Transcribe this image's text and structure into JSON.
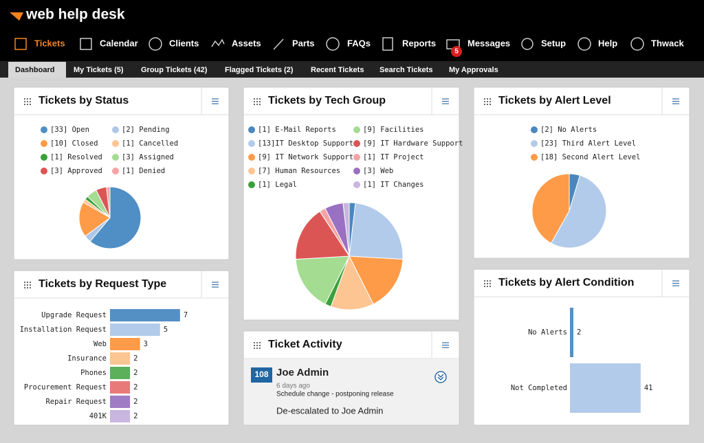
{
  "header": {
    "logo": "web help desk",
    "messages_badge": 5
  },
  "nav": [
    "Tickets",
    "Calendar",
    "Clients",
    "Assets",
    "Parts",
    "FAQs",
    "Reports",
    "Messages",
    "Setup",
    "Help",
    "Thwack"
  ],
  "tabs": [
    "Dashboard",
    "My Tickets (5)",
    "Group Tickets (42)",
    "Flagged Tickets (2)",
    "Recent Tickets",
    "Search Tickets",
    "My Approvals"
  ],
  "chart_data": [
    {
      "type": "pie",
      "title": "Tickets by Status",
      "labels": [
        "[33] Open",
        "[2] Pending",
        "[10] Closed",
        "[1] Cancelled",
        "[1] Resolved",
        "[3] Assigned",
        "[3] Approved",
        "[1] Denied"
      ],
      "values": [
        33,
        2,
        10,
        1,
        1,
        3,
        3,
        1
      ],
      "colors": [
        "#4f8fc6",
        "#aec7e8",
        "#fd9b48",
        "#fdc592",
        "#3aa03a",
        "#a4dc91",
        "#dc5555",
        "#f5a3a3"
      ]
    },
    {
      "type": "pie",
      "title": "Tickets by Tech Group",
      "labels": [
        "[1] E-Mail Reports",
        "[13]IT Desktop Support",
        "[9] IT Network Support",
        "[7] Human Resources",
        "[1] Legal",
        "[9] Facilities",
        "[9] IT Hardware Support",
        "[1] IT Project",
        "[3] Web",
        "[1] IT Changes"
      ],
      "values": [
        1,
        13,
        9,
        7,
        1,
        9,
        9,
        1,
        3,
        1
      ],
      "colors": [
        "#4a87bf",
        "#b3cbea",
        "#fd9b48",
        "#fdc592",
        "#3aa03a",
        "#a4dc91",
        "#dc5555",
        "#f5a3a3",
        "#9a70c2",
        "#c9b6de"
      ]
    },
    {
      "type": "pie",
      "title": "Tickets by Alert Level",
      "labels": [
        "[2] No Alerts",
        "[23] Third Alert Level",
        "[18] Second Alert Level"
      ],
      "values": [
        2,
        23,
        18
      ],
      "colors": [
        "#4a87bf",
        "#b3cbea",
        "#fd9b48"
      ]
    },
    {
      "type": "bar",
      "horizontal": true,
      "title": "Tickets by Request Type",
      "categories": [
        "Upgrade Request",
        "Installation Request",
        "Web",
        "Insurance",
        "Phones",
        "Procurement Request",
        "Repair Request",
        "401K"
      ],
      "values": [
        7,
        5,
        3,
        2,
        2,
        2,
        2,
        2
      ],
      "colors": [
        "#5590c4",
        "#b3cbea",
        "#fd9b48",
        "#fdc592",
        "#5cb05c",
        "#e87a7a",
        "#a07cc4",
        "#c9b6de"
      ],
      "xlim": [
        0,
        9
      ]
    },
    {
      "type": "bar",
      "horizontal": true,
      "title": "Tickets by Alert Condition",
      "categories": [
        "No Alerts",
        "Not Completed"
      ],
      "values": [
        2,
        41
      ],
      "colors": [
        "#5590c4",
        "#b3cbea"
      ],
      "xlim": [
        0,
        57
      ]
    }
  ],
  "activity": {
    "title": "Ticket Activity",
    "ticket_number": 108,
    "name": "Joe Admin",
    "time": "6 days ago",
    "subject": "Schedule change - postponing release",
    "note": "De-escalated to Joe Admin"
  }
}
